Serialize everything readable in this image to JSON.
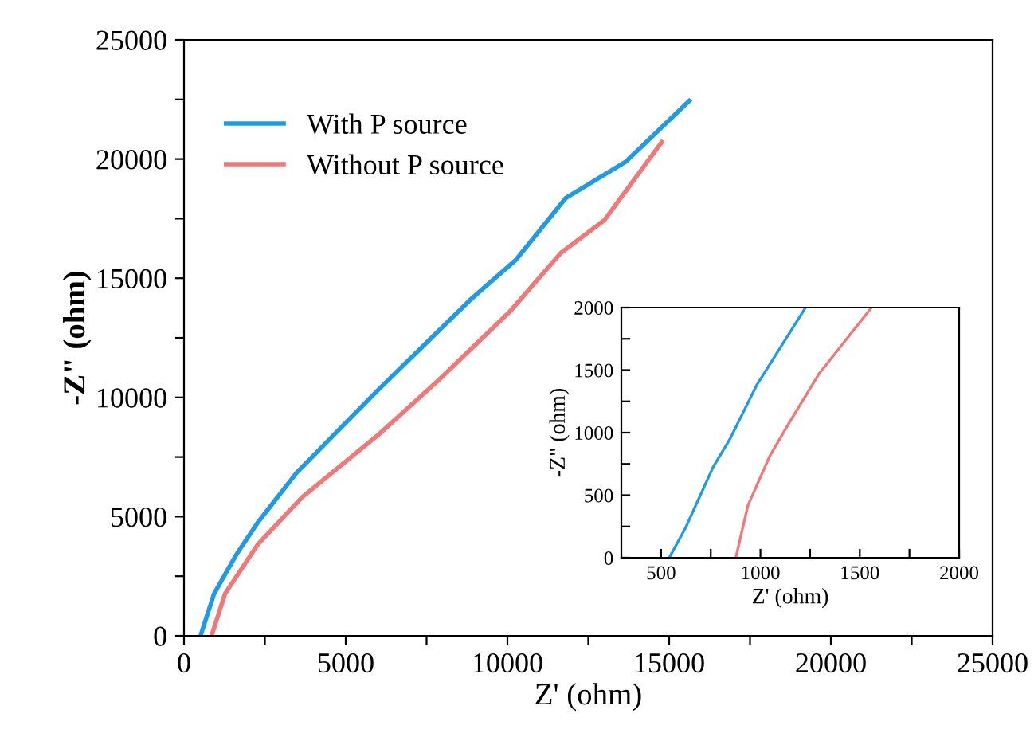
{
  "chart_data": [
    {
      "type": "line",
      "xlabel": "Z' (ohm)",
      "ylabel": "-Z\" (ohm)",
      "legend": "top left",
      "grid": false,
      "xlim": [
        0,
        25000
      ],
      "ylim": [
        0,
        25000
      ],
      "xticks": [
        0,
        {
          "value": 2500,
          "label": null
        },
        5000,
        {
          "value": 7500,
          "label": null
        },
        10000,
        {
          "value": 12500,
          "label": null
        },
        15000,
        {
          "value": 17500,
          "label": null
        },
        20000,
        {
          "value": 22500,
          "label": null
        },
        25000
      ],
      "yticks": [
        0,
        {
          "value": 2500,
          "label": null
        },
        5000,
        {
          "value": 7500,
          "label": null
        },
        10000,
        {
          "value": 12500,
          "label": null
        },
        15000,
        {
          "value": 17500,
          "label": null
        },
        20000,
        {
          "value": 22500,
          "label": null
        },
        25000
      ],
      "series": [
        {
          "name": "With P source",
          "color": "#1e9be8",
          "x": [
            510,
            930,
            1610,
            2290,
            3480,
            5990,
            8910,
            10270,
            11800,
            13670,
            15620
          ],
          "values": [
            0,
            1770,
            3390,
            4770,
            6840,
            10300,
            14170,
            15780,
            18360,
            19900,
            22440
          ]
        },
        {
          "name": "Without P source",
          "color": "#f07878",
          "x": [
            850,
            1270,
            2290,
            3650,
            6030,
            7900,
            10100,
            11650,
            13000,
            14770
          ],
          "values": [
            0,
            1770,
            3850,
            5810,
            8460,
            10760,
            13640,
            16060,
            17440,
            20710
          ]
        }
      ]
    },
    {
      "type": "line",
      "xlabel": "Z' (ohm)",
      "ylabel": "-Z\" (ohm)",
      "grid": false,
      "xlim": [
        300,
        2000
      ],
      "ylim": [
        0,
        2000
      ],
      "xticks": [
        500,
        {
          "value": 750,
          "label": null
        },
        1000,
        {
          "value": 1250,
          "label": null
        },
        1500,
        {
          "value": 1750,
          "label": null
        },
        2000
      ],
      "yticks": [
        0,
        {
          "value": 250,
          "label": null
        },
        500,
        {
          "value": 750,
          "label": null
        },
        1000,
        {
          "value": 1250,
          "label": null
        },
        1500,
        {
          "value": 1750,
          "label": null
        },
        2000
      ],
      "series": [
        {
          "color": "#1e9be8",
          "x": [
            541,
            624,
            762,
            845,
            983,
            1227
          ],
          "values": [
            0,
            242,
            725,
            945,
            1385,
            2000
          ]
        },
        {
          "color": "#f07878",
          "x": [
            876,
            937,
            1047,
            1144,
            1296,
            1559
          ],
          "values": [
            0,
            418,
            813,
            1077,
            1473,
            2000
          ]
        }
      ]
    }
  ]
}
